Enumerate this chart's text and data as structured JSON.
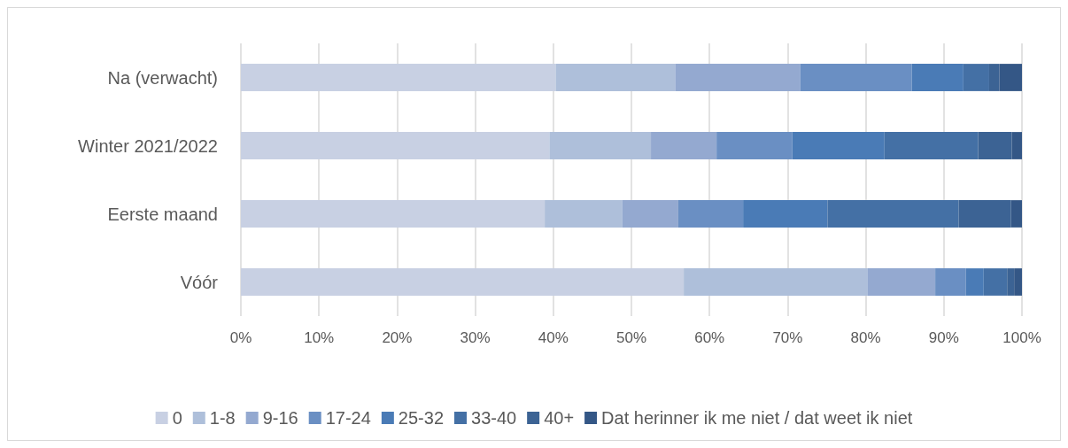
{
  "chart_data": {
    "type": "bar",
    "orientation": "horizontal",
    "stacked": true,
    "categories": [
      "Na (verwacht)",
      "Winter 2021/2022",
      "Eerste maand",
      "Vóór"
    ],
    "series": [
      {
        "name": "0",
        "color": "#c8d0e3",
        "values": [
          40.3,
          39.5,
          38.9,
          56.7
        ]
      },
      {
        "name": "1-8",
        "color": "#aebfda",
        "values": [
          15.3,
          13.0,
          9.9,
          23.5
        ]
      },
      {
        "name": "9-16",
        "color": "#94a9d0",
        "values": [
          16.0,
          8.4,
          7.2,
          8.7
        ]
      },
      {
        "name": "17-24",
        "color": "#6a8fc3",
        "values": [
          14.3,
          9.7,
          8.3,
          3.9
        ]
      },
      {
        "name": "25-32",
        "color": "#4a7bb6",
        "values": [
          6.6,
          11.8,
          10.8,
          2.3
        ]
      },
      {
        "name": "33-40",
        "color": "#4470a5",
        "values": [
          3.3,
          12.0,
          16.8,
          3.0
        ]
      },
      {
        "name": "40+",
        "color": "#3c6394",
        "values": [
          1.3,
          4.3,
          6.7,
          0.9
        ]
      },
      {
        "name": "Dat herinner ik me niet / dat weet ik niet",
        "color": "#345786",
        "values": [
          2.9,
          1.3,
          1.4,
          1.0
        ]
      }
    ],
    "xlim": [
      0,
      100
    ],
    "xticks": [
      {
        "value": 0,
        "label": "0%"
      },
      {
        "value": 10,
        "label": "10%"
      },
      {
        "value": 20,
        "label": "20%"
      },
      {
        "value": 30,
        "label": "30%"
      },
      {
        "value": 40,
        "label": "40%"
      },
      {
        "value": 50,
        "label": "50%"
      },
      {
        "value": 60,
        "label": "60%"
      },
      {
        "value": 70,
        "label": "70%"
      },
      {
        "value": 80,
        "label": "80%"
      },
      {
        "value": 90,
        "label": "90%"
      },
      {
        "value": 100,
        "label": "100%"
      }
    ],
    "grid": "x",
    "legend": "bottom"
  }
}
